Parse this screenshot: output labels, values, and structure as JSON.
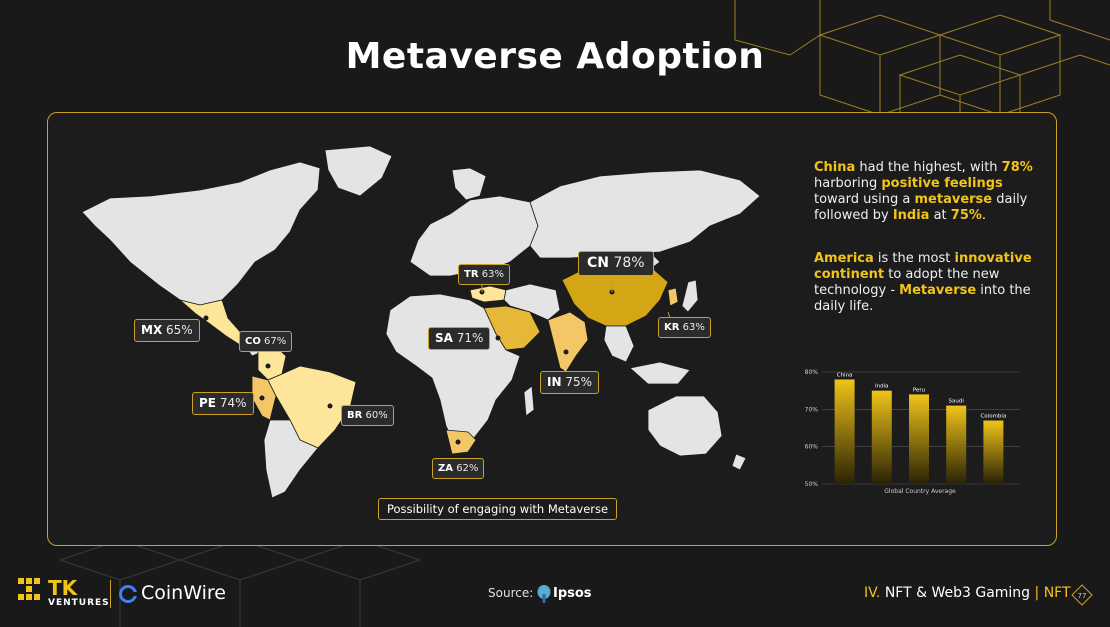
{
  "title": "Metaverse Adoption",
  "map_caption": "Possibility of engaging with Metaverse",
  "map_labels": {
    "cn": {
      "code": "CN",
      "value": "78%"
    },
    "tr": {
      "code": "TR",
      "value": "63%"
    },
    "mx": {
      "code": "MX",
      "value": "65%"
    },
    "co": {
      "code": "CO",
      "value": "67%"
    },
    "sa": {
      "code": "SA",
      "value": "71%"
    },
    "kr": {
      "code": "KR",
      "value": "63%"
    },
    "pe": {
      "code": "PE",
      "value": "74%"
    },
    "in": {
      "code": "IN",
      "value": "75%"
    },
    "br": {
      "code": "BR",
      "value": "60%"
    },
    "za": {
      "code": "ZA",
      "value": "62%"
    }
  },
  "insight1": {
    "p1": "China",
    "p2": " had the highest, with ",
    "p3": "78%",
    "p4": " harboring ",
    "p5": "positive feelings",
    "p6": " toward using a ",
    "p7": "metaverse",
    "p8": " daily followed by ",
    "p9": "India",
    "p10": " at ",
    "p11": "75%",
    "p12": "."
  },
  "insight2": {
    "p1": "America",
    "p2": " is the most ",
    "p3": "innovative continent",
    "p4": " to adopt the new technology - ",
    "p5": "Metaverse",
    "p6": " into the daily life."
  },
  "chart_data": {
    "type": "bar",
    "categories": [
      "China",
      "India",
      "Peru",
      "Saudi",
      "Colombia"
    ],
    "values": [
      78,
      75,
      74,
      71,
      67
    ],
    "ylim": [
      50,
      80
    ],
    "yticks": [
      "50%",
      "60%",
      "70%",
      "80%"
    ],
    "xlabel": "Global Country Average",
    "bar_color": "#f0c419"
  },
  "footer": {
    "brand1": "TK",
    "brand1_sub": "VENTURES",
    "brand2": "CoinWire",
    "source_label": "Source:",
    "source_name": "Ipsos",
    "section_prefix": "IV.",
    "section_name": "NFT & Web3 Gaming",
    "section_divider": "|",
    "section_tag": "NFT",
    "page_number": "77"
  },
  "colors": {
    "accent": "#f0c419",
    "border": "#c9a227",
    "background": "#191919"
  }
}
